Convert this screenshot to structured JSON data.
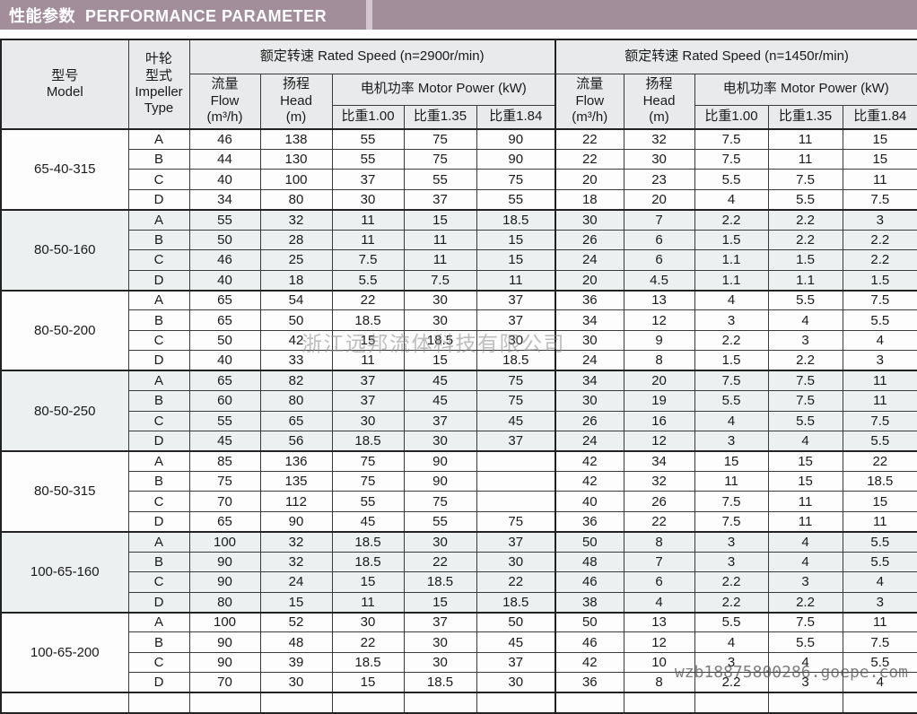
{
  "title_bar": {
    "label": "性能参数  PERFORMANCE PARAMETER"
  },
  "theme": {
    "title_bar_bg": "#a28d9b",
    "title_bar_stripe": "#d3c6d0",
    "header_cell_bg": "#e9eaeb",
    "band_row_bg": "#edf0f0",
    "border_color": "#222222"
  },
  "watermarks": {
    "center": "浙江远邦流体科技有限公司",
    "url": "wzb18875800286.goepe.com"
  },
  "table": {
    "header": {
      "model": "型号\nModel",
      "impeller": "叶轮\n型式\nImpeller\nType",
      "speed_2900": "额定转速  Rated Speed  (n=2900r/min)",
      "speed_1450": "额定转速  Rated Speed  (n=1450r/min)",
      "flow": "流量\nFlow\n(m³/h)",
      "head": "扬程\nHead\n(m)",
      "motor_power": "电机功率  Motor Power (kW)",
      "sg_100": "比重1.00",
      "sg_135": "比重1.35",
      "sg_184": "比重1.84"
    },
    "groups": [
      {
        "model": "65-40-315",
        "rows": [
          {
            "type": "A",
            "values": [
              "46",
              "138",
              "55",
              "75",
              "90",
              "22",
              "32",
              "7.5",
              "11",
              "15"
            ]
          },
          {
            "type": "B",
            "values": [
              "44",
              "130",
              "55",
              "75",
              "90",
              "22",
              "30",
              "7.5",
              "11",
              "15"
            ]
          },
          {
            "type": "C",
            "values": [
              "40",
              "100",
              "37",
              "55",
              "75",
              "20",
              "23",
              "5.5",
              "7.5",
              "11"
            ]
          },
          {
            "type": "D",
            "values": [
              "34",
              "80",
              "30",
              "37",
              "55",
              "18",
              "20",
              "4",
              "5.5",
              "7.5"
            ]
          }
        ]
      },
      {
        "model": "80-50-160",
        "rows": [
          {
            "type": "A",
            "values": [
              "55",
              "32",
              "11",
              "15",
              "18.5",
              "30",
              "7",
              "2.2",
              "2.2",
              "3"
            ]
          },
          {
            "type": "B",
            "values": [
              "50",
              "28",
              "11",
              "11",
              "15",
              "26",
              "6",
              "1.5",
              "2.2",
              "2.2"
            ]
          },
          {
            "type": "C",
            "values": [
              "46",
              "25",
              "7.5",
              "11",
              "15",
              "24",
              "6",
              "1.1",
              "1.5",
              "2.2"
            ]
          },
          {
            "type": "D",
            "values": [
              "40",
              "18",
              "5.5",
              "7.5",
              "11",
              "20",
              "4.5",
              "1.1",
              "1.1",
              "1.5"
            ]
          }
        ]
      },
      {
        "model": "80-50-200",
        "rows": [
          {
            "type": "A",
            "values": [
              "65",
              "54",
              "22",
              "30",
              "37",
              "36",
              "13",
              "4",
              "5.5",
              "7.5"
            ]
          },
          {
            "type": "B",
            "values": [
              "65",
              "50",
              "18.5",
              "30",
              "37",
              "34",
              "12",
              "3",
              "4",
              "5.5"
            ]
          },
          {
            "type": "C",
            "values": [
              "50",
              "42",
              "15",
              "18.5",
              "30",
              "30",
              "9",
              "2.2",
              "3",
              "4"
            ]
          },
          {
            "type": "D",
            "values": [
              "40",
              "33",
              "11",
              "15",
              "18.5",
              "24",
              "8",
              "1.5",
              "2.2",
              "3"
            ]
          }
        ]
      },
      {
        "model": "80-50-250",
        "rows": [
          {
            "type": "A",
            "values": [
              "65",
              "82",
              "37",
              "45",
              "75",
              "34",
              "20",
              "7.5",
              "7.5",
              "11"
            ]
          },
          {
            "type": "B",
            "values": [
              "60",
              "80",
              "37",
              "45",
              "75",
              "30",
              "19",
              "5.5",
              "7.5",
              "11"
            ]
          },
          {
            "type": "C",
            "values": [
              "55",
              "65",
              "30",
              "37",
              "45",
              "26",
              "16",
              "4",
              "5.5",
              "7.5"
            ]
          },
          {
            "type": "D",
            "values": [
              "45",
              "56",
              "18.5",
              "30",
              "37",
              "24",
              "12",
              "3",
              "4",
              "5.5"
            ]
          }
        ]
      },
      {
        "model": "80-50-315",
        "rows": [
          {
            "type": "A",
            "values": [
              "85",
              "136",
              "75",
              "90",
              "",
              "42",
              "34",
              "15",
              "15",
              "22"
            ]
          },
          {
            "type": "B",
            "values": [
              "75",
              "135",
              "75",
              "90",
              "",
              "42",
              "32",
              "11",
              "15",
              "18.5"
            ]
          },
          {
            "type": "C",
            "values": [
              "70",
              "112",
              "55",
              "75",
              "",
              "40",
              "26",
              "7.5",
              "11",
              "15"
            ]
          },
          {
            "type": "D",
            "values": [
              "65",
              "90",
              "45",
              "55",
              "75",
              "36",
              "22",
              "7.5",
              "11",
              "11"
            ]
          }
        ]
      },
      {
        "model": "100-65-160",
        "rows": [
          {
            "type": "A",
            "values": [
              "100",
              "32",
              "18.5",
              "30",
              "37",
              "50",
              "8",
              "3",
              "4",
              "5.5"
            ]
          },
          {
            "type": "B",
            "values": [
              "90",
              "32",
              "18.5",
              "22",
              "30",
              "48",
              "7",
              "3",
              "4",
              "5.5"
            ]
          },
          {
            "type": "C",
            "values": [
              "90",
              "24",
              "15",
              "18.5",
              "22",
              "46",
              "6",
              "2.2",
              "3",
              "4"
            ]
          },
          {
            "type": "D",
            "values": [
              "80",
              "15",
              "11",
              "15",
              "18.5",
              "38",
              "4",
              "2.2",
              "2.2",
              "3"
            ]
          }
        ]
      },
      {
        "model": "100-65-200",
        "rows": [
          {
            "type": "A",
            "values": [
              "100",
              "52",
              "30",
              "37",
              "50",
              "50",
              "13",
              "5.5",
              "7.5",
              "11"
            ]
          },
          {
            "type": "B",
            "values": [
              "90",
              "48",
              "22",
              "30",
              "45",
              "46",
              "12",
              "4",
              "5.5",
              "7.5"
            ]
          },
          {
            "type": "C",
            "values": [
              "90",
              "39",
              "18.5",
              "30",
              "37",
              "42",
              "10",
              "3",
              "4",
              "5.5"
            ]
          },
          {
            "type": "D",
            "values": [
              "70",
              "30",
              "15",
              "18.5",
              "30",
              "36",
              "8",
              "2.2",
              "3",
              "4"
            ]
          }
        ]
      }
    ]
  }
}
